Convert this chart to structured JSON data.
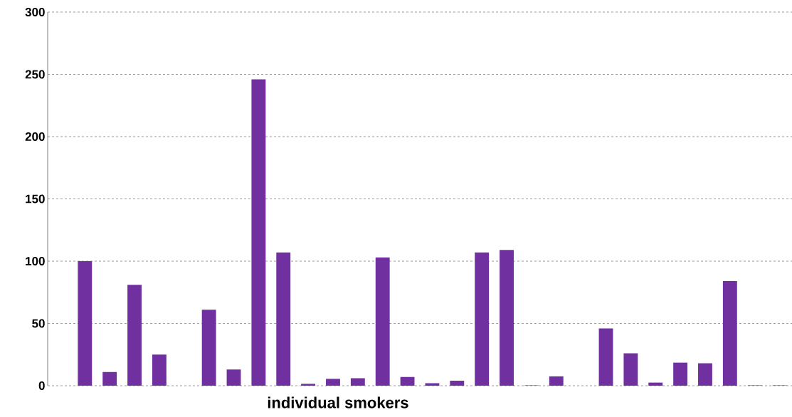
{
  "chart_data": {
    "type": "bar",
    "xlabel": "individual smokers",
    "categories": [
      null,
      null,
      null,
      null,
      null,
      null,
      null,
      null,
      null,
      null,
      null,
      null,
      null,
      null,
      null,
      null,
      null,
      null,
      null,
      null,
      null,
      null,
      null,
      null,
      null,
      null,
      null,
      null,
      null,
      null
    ],
    "values": [
      0,
      100,
      11,
      81,
      25,
      0,
      61,
      13,
      246,
      107,
      1.5,
      5.5,
      6,
      103,
      7,
      2,
      4,
      107,
      109,
      0.3,
      7.5,
      0,
      46,
      26,
      2.5,
      18.5,
      18,
      84,
      0.3,
      0.3
    ],
    "color": "#7030a0",
    "ylim": [
      0,
      300
    ],
    "yticks": [
      0,
      50,
      100,
      150,
      200,
      250,
      300
    ],
    "grid": "y"
  }
}
